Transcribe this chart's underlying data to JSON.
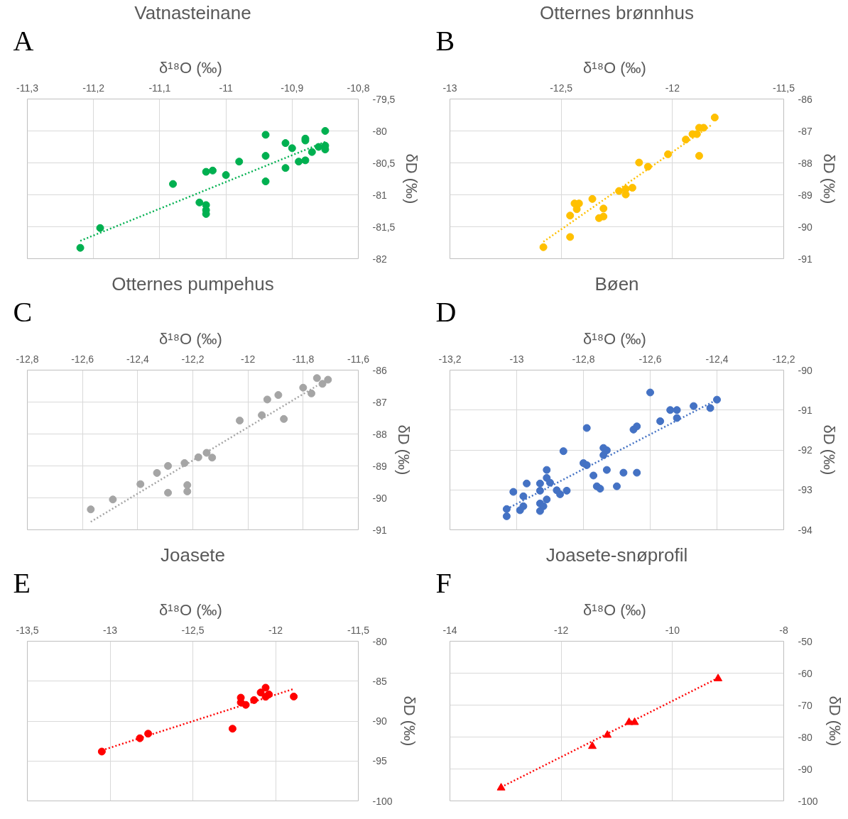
{
  "chart_data": [
    {
      "type": "scatter",
      "title": "Vatnasteinane",
      "xlabel": "δ¹⁸O  (‰)",
      "ylabel": "δD (‰)",
      "annotations": [
        "A"
      ],
      "grid": true,
      "xlim": [
        -11.3,
        -10.8
      ],
      "xticks": [
        {
          "value": -11.3,
          "label": "-11,3"
        },
        {
          "value": -11.2,
          "label": "-11,2"
        },
        {
          "value": -11.1,
          "label": "-11,1"
        },
        -11,
        {
          "value": -10.9,
          "label": "-10,9"
        },
        {
          "value": -10.8,
          "label": "-10,8"
        }
      ],
      "ylim": [
        -82,
        -79.5
      ],
      "yticks": [
        -82,
        {
          "value": -81.5,
          "label": "-81,5"
        },
        -81,
        {
          "value": -80.5,
          "label": "-80,5"
        },
        -80,
        {
          "value": -79.5,
          "label": "-79,5"
        }
      ],
      "series": [
        {
          "color": "#00b050",
          "marker": "circle",
          "x": [
            -11.22,
            -11.19,
            -11.08,
            -11.04,
            -11.03,
            -11.03,
            -11.03,
            -11.03,
            -11.02,
            -11.0,
            -10.98,
            -10.94,
            -10.94,
            -10.94,
            -10.91,
            -10.91,
            -10.9,
            -10.89,
            -10.88,
            -10.88,
            -10.88,
            -10.87,
            -10.86,
            -10.85,
            -10.85,
            -10.85
          ],
          "values": [
            -81.83,
            -81.52,
            -80.83,
            -81.12,
            -81.16,
            -81.24,
            -81.3,
            -80.64,
            -80.62,
            -80.69,
            -80.48,
            -80.06,
            -80.39,
            -80.79,
            -80.19,
            -80.58,
            -80.27,
            -80.48,
            -80.12,
            -80.15,
            -80.46,
            -80.33,
            -80.25,
            -80.0,
            -80.23,
            -80.29
          ]
        },
        {
          "type": "line",
          "line_style": "dotted",
          "marker": "none",
          "color": "#00b050",
          "x": [
            -11.22,
            -10.85
          ],
          "values": [
            -81.72,
            -80.17
          ]
        }
      ]
    },
    {
      "type": "scatter",
      "title": "Otternes brønnhus",
      "xlabel": "δ¹⁸O  (‰)",
      "ylabel": "δD (‰)",
      "annotations": [
        "B"
      ],
      "grid": true,
      "xlim": [
        -13,
        -11.5
      ],
      "xticks": [
        -13,
        {
          "value": -12.5,
          "label": "-12,5"
        },
        -12,
        {
          "value": -11.5,
          "label": "-11,5"
        }
      ],
      "ylim": [
        -91,
        -86
      ],
      "yticks": [
        -91,
        -90,
        -89,
        -88,
        -87,
        -86
      ],
      "series": [
        {
          "color": "#ffc000",
          "marker": "circle",
          "x": [
            -12.58,
            -12.46,
            -12.46,
            -12.44,
            -12.42,
            -12.43,
            -12.36,
            -12.33,
            -12.31,
            -12.31,
            -12.24,
            -12.21,
            -12.21,
            -12.18,
            -12.15,
            -12.11,
            -12.02,
            -11.94,
            -11.91,
            -11.89,
            -11.88,
            -11.86,
            -11.88,
            -11.81
          ],
          "values": [
            -90.64,
            -90.32,
            -89.65,
            -89.27,
            -89.27,
            -89.45,
            -89.13,
            -89.73,
            -89.68,
            -89.43,
            -88.88,
            -88.99,
            -88.82,
            -88.78,
            -87.99,
            -88.12,
            -87.73,
            -87.27,
            -87.1,
            -87.1,
            -86.9,
            -86.9,
            -87.78,
            -86.58
          ]
        },
        {
          "type": "line",
          "line_style": "dotted",
          "marker": "none",
          "color": "#ffc000",
          "x": [
            -12.58,
            -11.82
          ],
          "values": [
            -90.47,
            -86.79
          ]
        }
      ]
    },
    {
      "type": "scatter",
      "title": "Otternes pumpehus",
      "xlabel": "δ¹⁸O  (‰)",
      "ylabel": "δD (‰)",
      "annotations": [
        "C"
      ],
      "grid": true,
      "xlim": [
        -12.8,
        -11.6
      ],
      "xticks": [
        {
          "value": -12.8,
          "label": "-12,8"
        },
        {
          "value": -12.6,
          "label": "-12,6"
        },
        {
          "value": -12.4,
          "label": "-12,4"
        },
        {
          "value": -12.2,
          "label": "-12,2"
        },
        -12,
        {
          "value": -11.8,
          "label": "-11,8"
        },
        {
          "value": -11.6,
          "label": "-11,6"
        }
      ],
      "ylim": [
        -91,
        -86
      ],
      "yticks": [
        -91,
        -90,
        -89,
        -88,
        -87,
        -86
      ],
      "series": [
        {
          "color": "#a5a5a5",
          "marker": "circle",
          "x": [
            -12.57,
            -12.49,
            -12.39,
            -12.33,
            -12.29,
            -12.29,
            -12.23,
            -12.22,
            -12.22,
            -12.18,
            -12.15,
            -12.13,
            -12.03,
            -11.95,
            -11.93,
            -11.89,
            -11.87,
            -11.8,
            -11.77,
            -11.75,
            -11.73,
            -11.71
          ],
          "values": [
            -90.36,
            -90.05,
            -89.57,
            -89.22,
            -89.0,
            -89.84,
            -88.91,
            -89.6,
            -89.8,
            -88.73,
            -88.59,
            -88.74,
            -87.58,
            -87.41,
            -86.92,
            -86.78,
            -87.53,
            -86.55,
            -86.73,
            -86.25,
            -86.43,
            -86.3
          ]
        },
        {
          "type": "line",
          "line_style": "dotted",
          "marker": "none",
          "color": "#a5a5a5",
          "x": [
            -12.57,
            -11.75
          ],
          "values": [
            -90.75,
            -86.49
          ]
        }
      ]
    },
    {
      "type": "scatter",
      "title": "Bøen",
      "xlabel": "δ¹⁸O  (‰)",
      "ylabel": "δD (‰)",
      "annotations": [
        "D"
      ],
      "grid": true,
      "xlim": [
        -13.2,
        -12.2
      ],
      "xticks": [
        {
          "value": -13.2,
          "label": "-13,2"
        },
        -13,
        {
          "value": -12.8,
          "label": "-12,8"
        },
        {
          "value": -12.6,
          "label": "-12,6"
        },
        {
          "value": -12.4,
          "label": "-12,4"
        },
        {
          "value": -12.2,
          "label": "-12,2"
        }
      ],
      "ylim": [
        -94,
        -90
      ],
      "yticks": [
        -94,
        -93,
        -92,
        -91,
        -90
      ],
      "series": [
        {
          "color": "#4472c4",
          "marker": "circle",
          "x": [
            -13.03,
            -13.03,
            -13.01,
            -12.99,
            -12.98,
            -12.98,
            -12.97,
            -12.93,
            -12.93,
            -12.93,
            -12.93,
            -12.92,
            -12.91,
            -12.91,
            -12.91,
            -12.9,
            -12.88,
            -12.87,
            -12.85,
            -12.86,
            -12.8,
            -12.79,
            -12.79,
            -12.77,
            -12.76,
            -12.75,
            -12.74,
            -12.74,
            -12.73,
            -12.73,
            -12.7,
            -12.68,
            -12.64,
            -12.65,
            -12.64,
            -12.6,
            -12.57,
            -12.54,
            -12.52,
            -12.52,
            -12.47,
            -12.42,
            -12.4
          ],
          "values": [
            -93.48,
            -93.66,
            -93.05,
            -93.51,
            -93.41,
            -93.16,
            -92.84,
            -92.84,
            -93.02,
            -93.34,
            -93.53,
            -93.41,
            -93.24,
            -92.5,
            -92.7,
            -92.82,
            -93.01,
            -93.11,
            -93.02,
            -92.03,
            -92.33,
            -92.38,
            -91.45,
            -92.64,
            -92.91,
            -92.97,
            -92.13,
            -91.95,
            -92.01,
            -92.5,
            -92.91,
            -92.57,
            -92.57,
            -91.49,
            -91.41,
            -90.56,
            -91.28,
            -91.0,
            -91.0,
            -91.2,
            -90.9,
            -90.95,
            -90.74
          ]
        },
        {
          "type": "line",
          "line_style": "dotted",
          "marker": "none",
          "color": "#4472c4",
          "x": [
            -13.03,
            -12.4
          ],
          "values": [
            -93.48,
            -90.74
          ]
        }
      ]
    },
    {
      "type": "scatter",
      "title": "Joasete",
      "xlabel": "δ¹⁸O  (‰)",
      "ylabel": "δD (‰)",
      "annotations": [
        "E"
      ],
      "grid": true,
      "xlim": [
        -13.5,
        -11.5
      ],
      "xticks": [
        {
          "value": -13.5,
          "label": "-13,5"
        },
        -13,
        {
          "value": -12.5,
          "label": "-12,5"
        },
        -12,
        {
          "value": -11.5,
          "label": "-11,5"
        }
      ],
      "ylim": [
        -100,
        -80
      ],
      "yticks": [
        -100,
        -95,
        -90,
        -85,
        -80
      ],
      "series": [
        {
          "color": "#ff0000",
          "marker": "circle",
          "x": [
            -13.05,
            -12.82,
            -12.77,
            -12.26,
            -12.21,
            -12.21,
            -12.18,
            -12.13,
            -12.09,
            -12.06,
            -12.06,
            -12.04,
            -11.89
          ],
          "values": [
            -93.82,
            -92.15,
            -91.58,
            -90.96,
            -87.07,
            -87.67,
            -87.97,
            -87.37,
            -86.42,
            -85.82,
            -86.96,
            -86.66,
            -86.93
          ]
        },
        {
          "type": "line",
          "line_style": "dotted",
          "marker": "none",
          "color": "#ff0000",
          "x": [
            -13.05,
            -11.89
          ],
          "values": [
            -93.67,
            -85.97
          ]
        }
      ]
    },
    {
      "type": "scatter",
      "title": "Joasete-snøprofil",
      "xlabel": "δ¹⁸O  (‰)",
      "ylabel": "δD (‰)",
      "annotations": [
        "F"
      ],
      "grid": true,
      "xlim": [
        -14,
        -8
      ],
      "xticks": [
        -14,
        -12,
        -10,
        -8
      ],
      "ylim": [
        -100,
        -50
      ],
      "yticks": [
        -100,
        -90,
        -80,
        -70,
        -60,
        -50
      ],
      "series": [
        {
          "color": "#ff0000",
          "marker": "triangle",
          "x": [
            -13.08,
            -11.44,
            -11.17,
            -10.78,
            -10.68,
            -9.18
          ],
          "values": [
            -95.9,
            -82.9,
            -79.4,
            -75.4,
            -75.4,
            -61.7
          ]
        },
        {
          "type": "line",
          "line_style": "dotted",
          "marker": "none",
          "color": "#ff0000",
          "x": [
            -13.08,
            -9.18
          ],
          "values": [
            -95.7,
            -61.5
          ]
        }
      ]
    }
  ]
}
